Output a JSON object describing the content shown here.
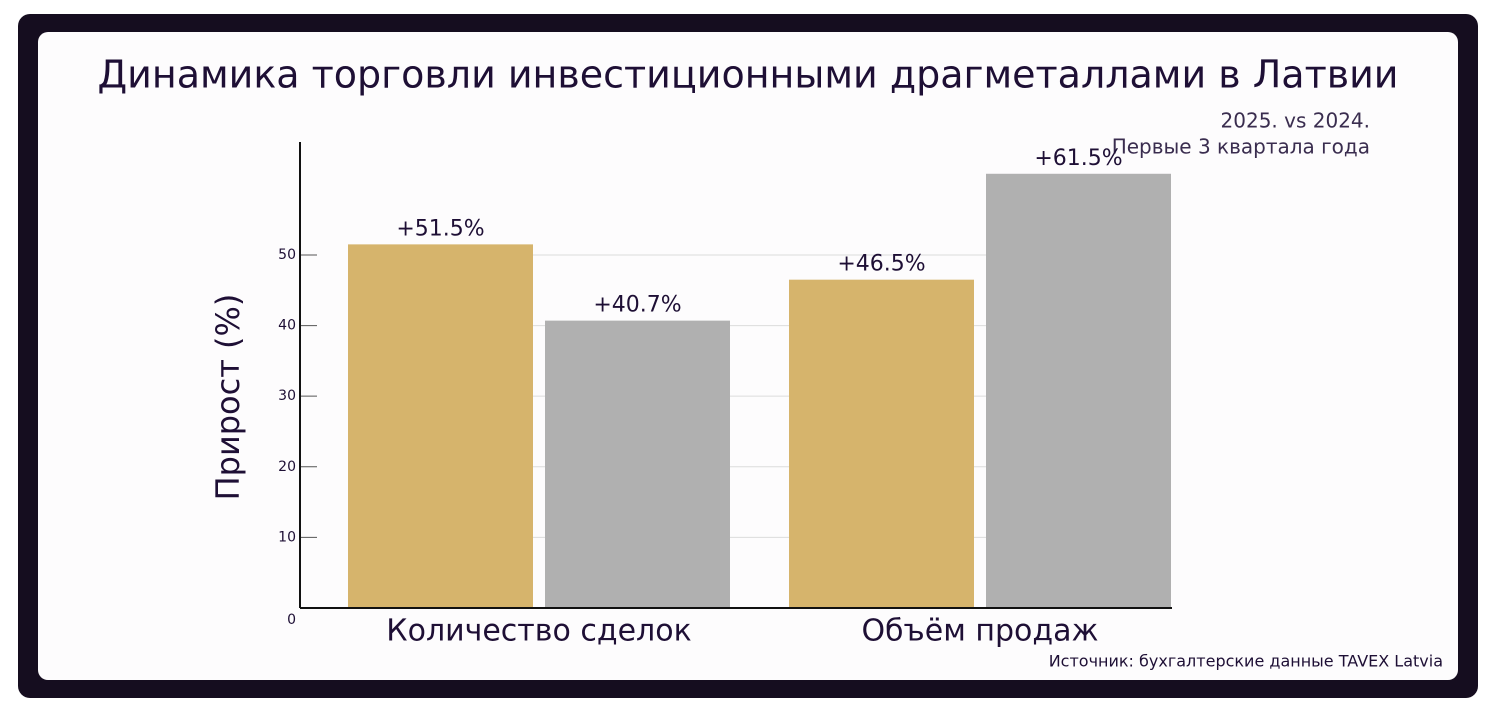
{
  "chart_data": {
    "type": "bar",
    "title": "Динамика торговли инвестиционными драгметаллами в Латвии",
    "subtitle": [
      "2025. vs 2024.",
      "Первые 3 квартала года"
    ],
    "y_label": "Прирост (%)",
    "source": "Источник: бухгалтерские данные TAVEX Latvia",
    "categories": [
      "Количество сделок",
      "Объём продаж"
    ],
    "series": [
      {
        "color": "#d6b46c",
        "values": [
          51.5,
          46.5
        ],
        "value_labels": [
          "+51.5%",
          "+46.5%"
        ]
      },
      {
        "color": "#b0b0b0",
        "values": [
          40.7,
          61.5
        ],
        "value_labels": [
          "+40.7%",
          "+61.5%"
        ]
      }
    ],
    "ylim": [
      0,
      66
    ],
    "yticks": [
      0,
      10,
      20,
      30,
      40,
      50
    ],
    "grid": true
  }
}
